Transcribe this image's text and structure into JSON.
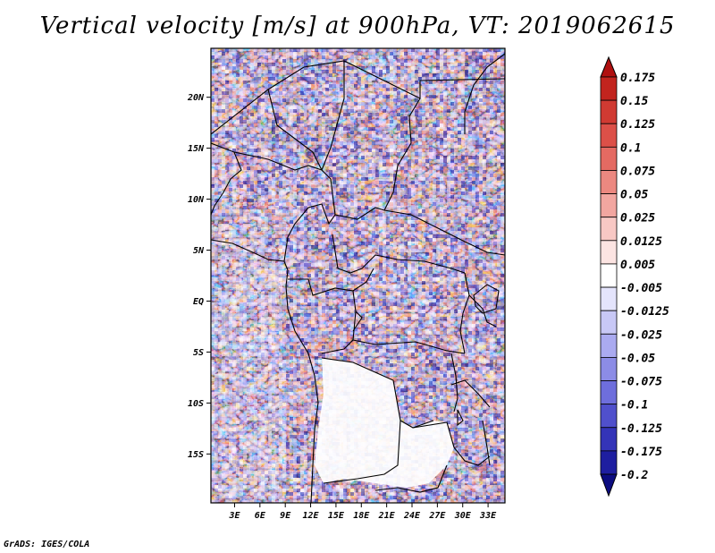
{
  "title": "Vertical velocity [m/s] at 900hPa, VT: 2019062615",
  "credit": "GrADS: IGES/COLA",
  "chart_data": {
    "type": "heatmap",
    "title": "Vertical velocity [m/s] at 900hPa, VT: 2019062615",
    "variable": "Vertical velocity",
    "units": "m/s",
    "level": "900hPa",
    "valid_time": "2019062615",
    "x_ticks": [
      "3E",
      "6E",
      "9E",
      "12E",
      "15E",
      "18E",
      "21E",
      "24E",
      "27E",
      "30E",
      "33E"
    ],
    "x_tick_values": [
      3,
      6,
      9,
      12,
      15,
      18,
      21,
      24,
      27,
      30,
      33
    ],
    "y_ticks": [
      "20N",
      "15N",
      "10N",
      "5N",
      "EQ",
      "5S",
      "10S",
      "15S"
    ],
    "y_tick_values": [
      20,
      15,
      10,
      5,
      0,
      -5,
      -10,
      -15
    ],
    "xlim": [
      0.2,
      35.0
    ],
    "ylim": [
      -19.8,
      24.8
    ],
    "colorbar": {
      "labels": [
        "0.175",
        "0.15",
        "0.125",
        "0.1",
        "0.075",
        "0.05",
        "0.025",
        "0.0125",
        "0.005",
        "-0.005",
        "-0.0125",
        "-0.025",
        "-0.05",
        "-0.075",
        "-0.1",
        "-0.125",
        "-0.175",
        "-0.2"
      ],
      "colors": [
        "#b01010",
        "#c2241e",
        "#d03a32",
        "#dc5048",
        "#e46a62",
        "#ec8880",
        "#f2a6a0",
        "#f8c8c4",
        "#fce4e2",
        "#ffffff",
        "#e4e4fc",
        "#c8c8f6",
        "#aaaaf0",
        "#8c8ce6",
        "#6e6edc",
        "#5050cc",
        "#3434b8",
        "#1e1ea0",
        "#0c0c80"
      ]
    }
  }
}
